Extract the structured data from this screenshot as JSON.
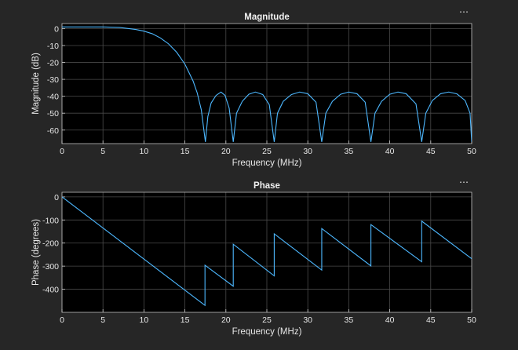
{
  "chart_data": [
    {
      "type": "line",
      "title": "Magnitude",
      "xlabel": "Frequency (MHz)",
      "ylabel": "Magnitude (dB)",
      "xlim": [
        0,
        50
      ],
      "ylim": [
        -68,
        3
      ],
      "xticks": [
        0,
        5,
        10,
        15,
        20,
        25,
        30,
        35,
        40,
        45,
        50
      ],
      "yticks": [
        0,
        -10,
        -20,
        -30,
        -40,
        -50,
        -60
      ],
      "grid": true,
      "series": [
        {
          "color": "#4db8ff",
          "points": [
            [
              0,
              1
            ],
            [
              5,
              1
            ],
            [
              7,
              0.7
            ],
            [
              9,
              -0.5
            ],
            [
              10,
              -1.5
            ],
            [
              11,
              -3
            ],
            [
              12,
              -5.5
            ],
            [
              13,
              -9
            ],
            [
              14,
              -14
            ],
            [
              15,
              -21
            ],
            [
              16,
              -31
            ],
            [
              16.5,
              -38
            ],
            [
              17,
              -48
            ],
            [
              17.5,
              -67
            ],
            [
              17.8,
              -52
            ],
            [
              18.2,
              -44
            ],
            [
              18.8,
              -39.5
            ],
            [
              19.4,
              -37.5
            ],
            [
              19.9,
              -39.5
            ],
            [
              20.4,
              -47
            ],
            [
              20.9,
              -67
            ],
            [
              21.3,
              -50
            ],
            [
              22,
              -43
            ],
            [
              22.8,
              -38.8
            ],
            [
              23.6,
              -37.5
            ],
            [
              24.5,
              -39
            ],
            [
              25.3,
              -45
            ],
            [
              25.9,
              -67
            ],
            [
              26.3,
              -50
            ],
            [
              27,
              -43
            ],
            [
              28,
              -39
            ],
            [
              29,
              -37.5
            ],
            [
              30,
              -38.5
            ],
            [
              31,
              -43.5
            ],
            [
              31.7,
              -67
            ],
            [
              32.2,
              -50
            ],
            [
              33,
              -43
            ],
            [
              34,
              -38.8
            ],
            [
              35,
              -37.5
            ],
            [
              36,
              -38.5
            ],
            [
              37,
              -43.5
            ],
            [
              37.7,
              -67
            ],
            [
              38.2,
              -50
            ],
            [
              39,
              -43
            ],
            [
              40,
              -38.8
            ],
            [
              41,
              -37.5
            ],
            [
              42,
              -38.5
            ],
            [
              43.2,
              -44.5
            ],
            [
              43.9,
              -67
            ],
            [
              44.4,
              -50
            ],
            [
              45.2,
              -42.5
            ],
            [
              46.2,
              -38.5
            ],
            [
              47.2,
              -37.5
            ],
            [
              48.2,
              -38.6
            ],
            [
              49.2,
              -42.5
            ],
            [
              49.8,
              -50
            ],
            [
              50,
              -67
            ]
          ]
        }
      ]
    },
    {
      "type": "line",
      "title": "Phase",
      "xlabel": "Frequency (MHz)",
      "ylabel": "Phase (degrees)",
      "xlim": [
        0,
        50
      ],
      "ylim": [
        -500,
        20
      ],
      "xticks": [
        0,
        5,
        10,
        15,
        20,
        25,
        30,
        35,
        40,
        45,
        50
      ],
      "yticks": [
        0,
        -100,
        -200,
        -300,
        -400
      ],
      "grid": true,
      "series": [
        {
          "color": "#4db8ff",
          "points": [
            [
              0,
              0
            ],
            [
              17.45,
              -470
            ],
            [
              17.45,
              -296
            ],
            [
              20.9,
              -387
            ],
            [
              20.9,
              -205
            ],
            [
              25.9,
              -342
            ],
            [
              25.9,
              -160
            ],
            [
              31.7,
              -317
            ],
            [
              31.7,
              -137
            ],
            [
              37.7,
              -299
            ],
            [
              37.7,
              -120
            ],
            [
              43.9,
              -281
            ],
            [
              43.9,
              -105
            ],
            [
              50,
              -268
            ]
          ]
        }
      ]
    }
  ],
  "ui": {
    "menu_glyph": "⋯"
  }
}
